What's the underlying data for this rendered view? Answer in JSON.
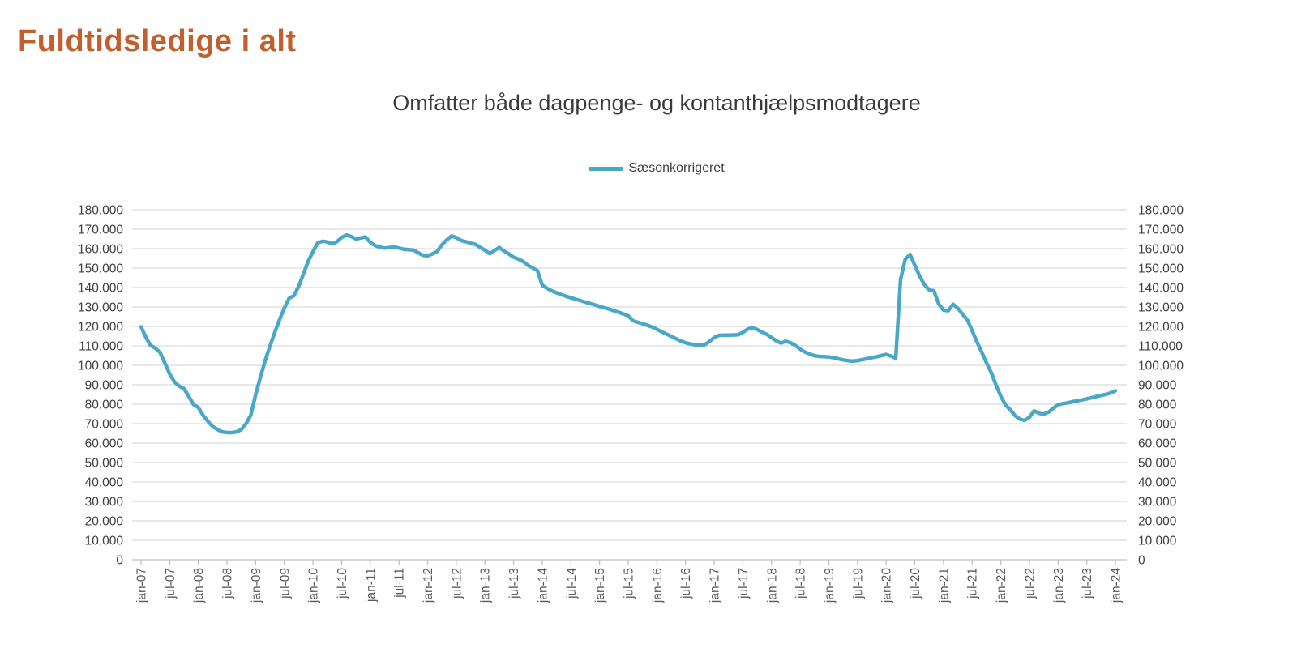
{
  "header": {
    "title": "Fuldtidsledige i alt"
  },
  "chart": {
    "subtitle": "Omfatter både dagpenge- og kontanthjælpsmodtagere",
    "legend": [
      "Sæsonkorrigeret"
    ]
  },
  "colors": {
    "title": "#C1602F",
    "line": "#4AA7C7",
    "gridline": "#D9D9D9",
    "axis": "#BFBFBF",
    "y_label_text": "#404040",
    "x_label_text": "#595959"
  },
  "chart_data": {
    "type": "line",
    "title": "Omfatter både dagpenge- og kontanthjælpsmodtagere",
    "legend_position": "top-center",
    "grid": "horizontal",
    "axes": {
      "left": true,
      "right": true
    },
    "ylim": [
      0,
      180000
    ],
    "y_tick_step": 10000,
    "y_tick_labels": [
      "0",
      "10.000",
      "20.000",
      "30.000",
      "40.000",
      "50.000",
      "60.000",
      "70.000",
      "80.000",
      "90.000",
      "100.000",
      "110.000",
      "120.000",
      "130.000",
      "140.000",
      "150.000",
      "160.000",
      "170.000",
      "180.000"
    ],
    "x_frequency": "monthly",
    "x_start": "jan-07",
    "x_end": "jan-24",
    "x_tick_every": 6,
    "x_tick_labels": [
      "jan-07",
      "jul-07",
      "jan-08",
      "jul-08",
      "jan-09",
      "jul-09",
      "jan-10",
      "jul-10",
      "jan-11",
      "jul-11",
      "jan-12",
      "jul-12",
      "jan-13",
      "jul-13",
      "jan-14",
      "jul-14",
      "jan-15",
      "jul-15",
      "jan-16",
      "jul-16",
      "jan-17",
      "jul-17",
      "jan-18",
      "jul-18",
      "jan-19",
      "jul-19",
      "jan-20",
      "jul-20",
      "jan-21",
      "jul-21",
      "jan-22",
      "jul-22",
      "jan-23",
      "jul-23",
      "jan-24"
    ],
    "series": [
      {
        "name": "Sæsonkorrigeret",
        "color": "#4AA7C7",
        "values": [
          119800,
          114500,
          110200,
          108800,
          106500,
          101000,
          95500,
          91500,
          89300,
          88000,
          84000,
          79800,
          78300,
          74200,
          71200,
          68500,
          67000,
          65800,
          65400,
          65400,
          65800,
          67000,
          70000,
          74500,
          85000,
          94000,
          102500,
          110000,
          117000,
          123500,
          129500,
          134500,
          135800,
          140500,
          147000,
          153500,
          158500,
          163000,
          163800,
          163500,
          162400,
          163600,
          165800,
          167000,
          166200,
          165000,
          165500,
          166000,
          163300,
          161600,
          160800,
          160300,
          160600,
          160900,
          160300,
          159700,
          159500,
          159300,
          157900,
          156600,
          156300,
          157300,
          158600,
          162000,
          164500,
          166500,
          165700,
          164200,
          163600,
          162900,
          162200,
          160700,
          159200,
          157400,
          159000,
          160600,
          158800,
          157300,
          155600,
          154600,
          153400,
          151400,
          150100,
          148700,
          141200,
          139600,
          138300,
          137300,
          136400,
          135500,
          134700,
          134000,
          133300,
          132500,
          131800,
          131100,
          130300,
          129600,
          128900,
          128100,
          127300,
          126400,
          125500,
          122900,
          122100,
          121400,
          120600,
          119700,
          118500,
          117300,
          116100,
          114900,
          113700,
          112500,
          111600,
          111000,
          110500,
          110300,
          110600,
          112300,
          114300,
          115400,
          115500,
          115500,
          115600,
          115700,
          116900,
          118600,
          119300,
          118400,
          117100,
          115900,
          114200,
          112600,
          111400,
          112400,
          111600,
          110200,
          108300,
          106800,
          105800,
          104900,
          104600,
          104500,
          104300,
          103900,
          103300,
          102800,
          102400,
          102200,
          102400,
          102900,
          103400,
          103900,
          104400,
          105000,
          105600,
          104800,
          103600,
          144000,
          154500,
          157000,
          151500,
          146000,
          141500,
          138800,
          138300,
          131500,
          128400,
          128100,
          131400,
          129300,
          126300,
          123400,
          117900,
          112100,
          106900,
          101300,
          96300,
          89900,
          84100,
          79600,
          77100,
          74100,
          72300,
          71700,
          73300,
          76600,
          75300,
          74900,
          75900,
          77900,
          79700,
          80300,
          80700,
          81300,
          81700,
          82200,
          82700,
          83300,
          83900,
          84500,
          85100,
          85800,
          86900
        ]
      }
    ]
  }
}
